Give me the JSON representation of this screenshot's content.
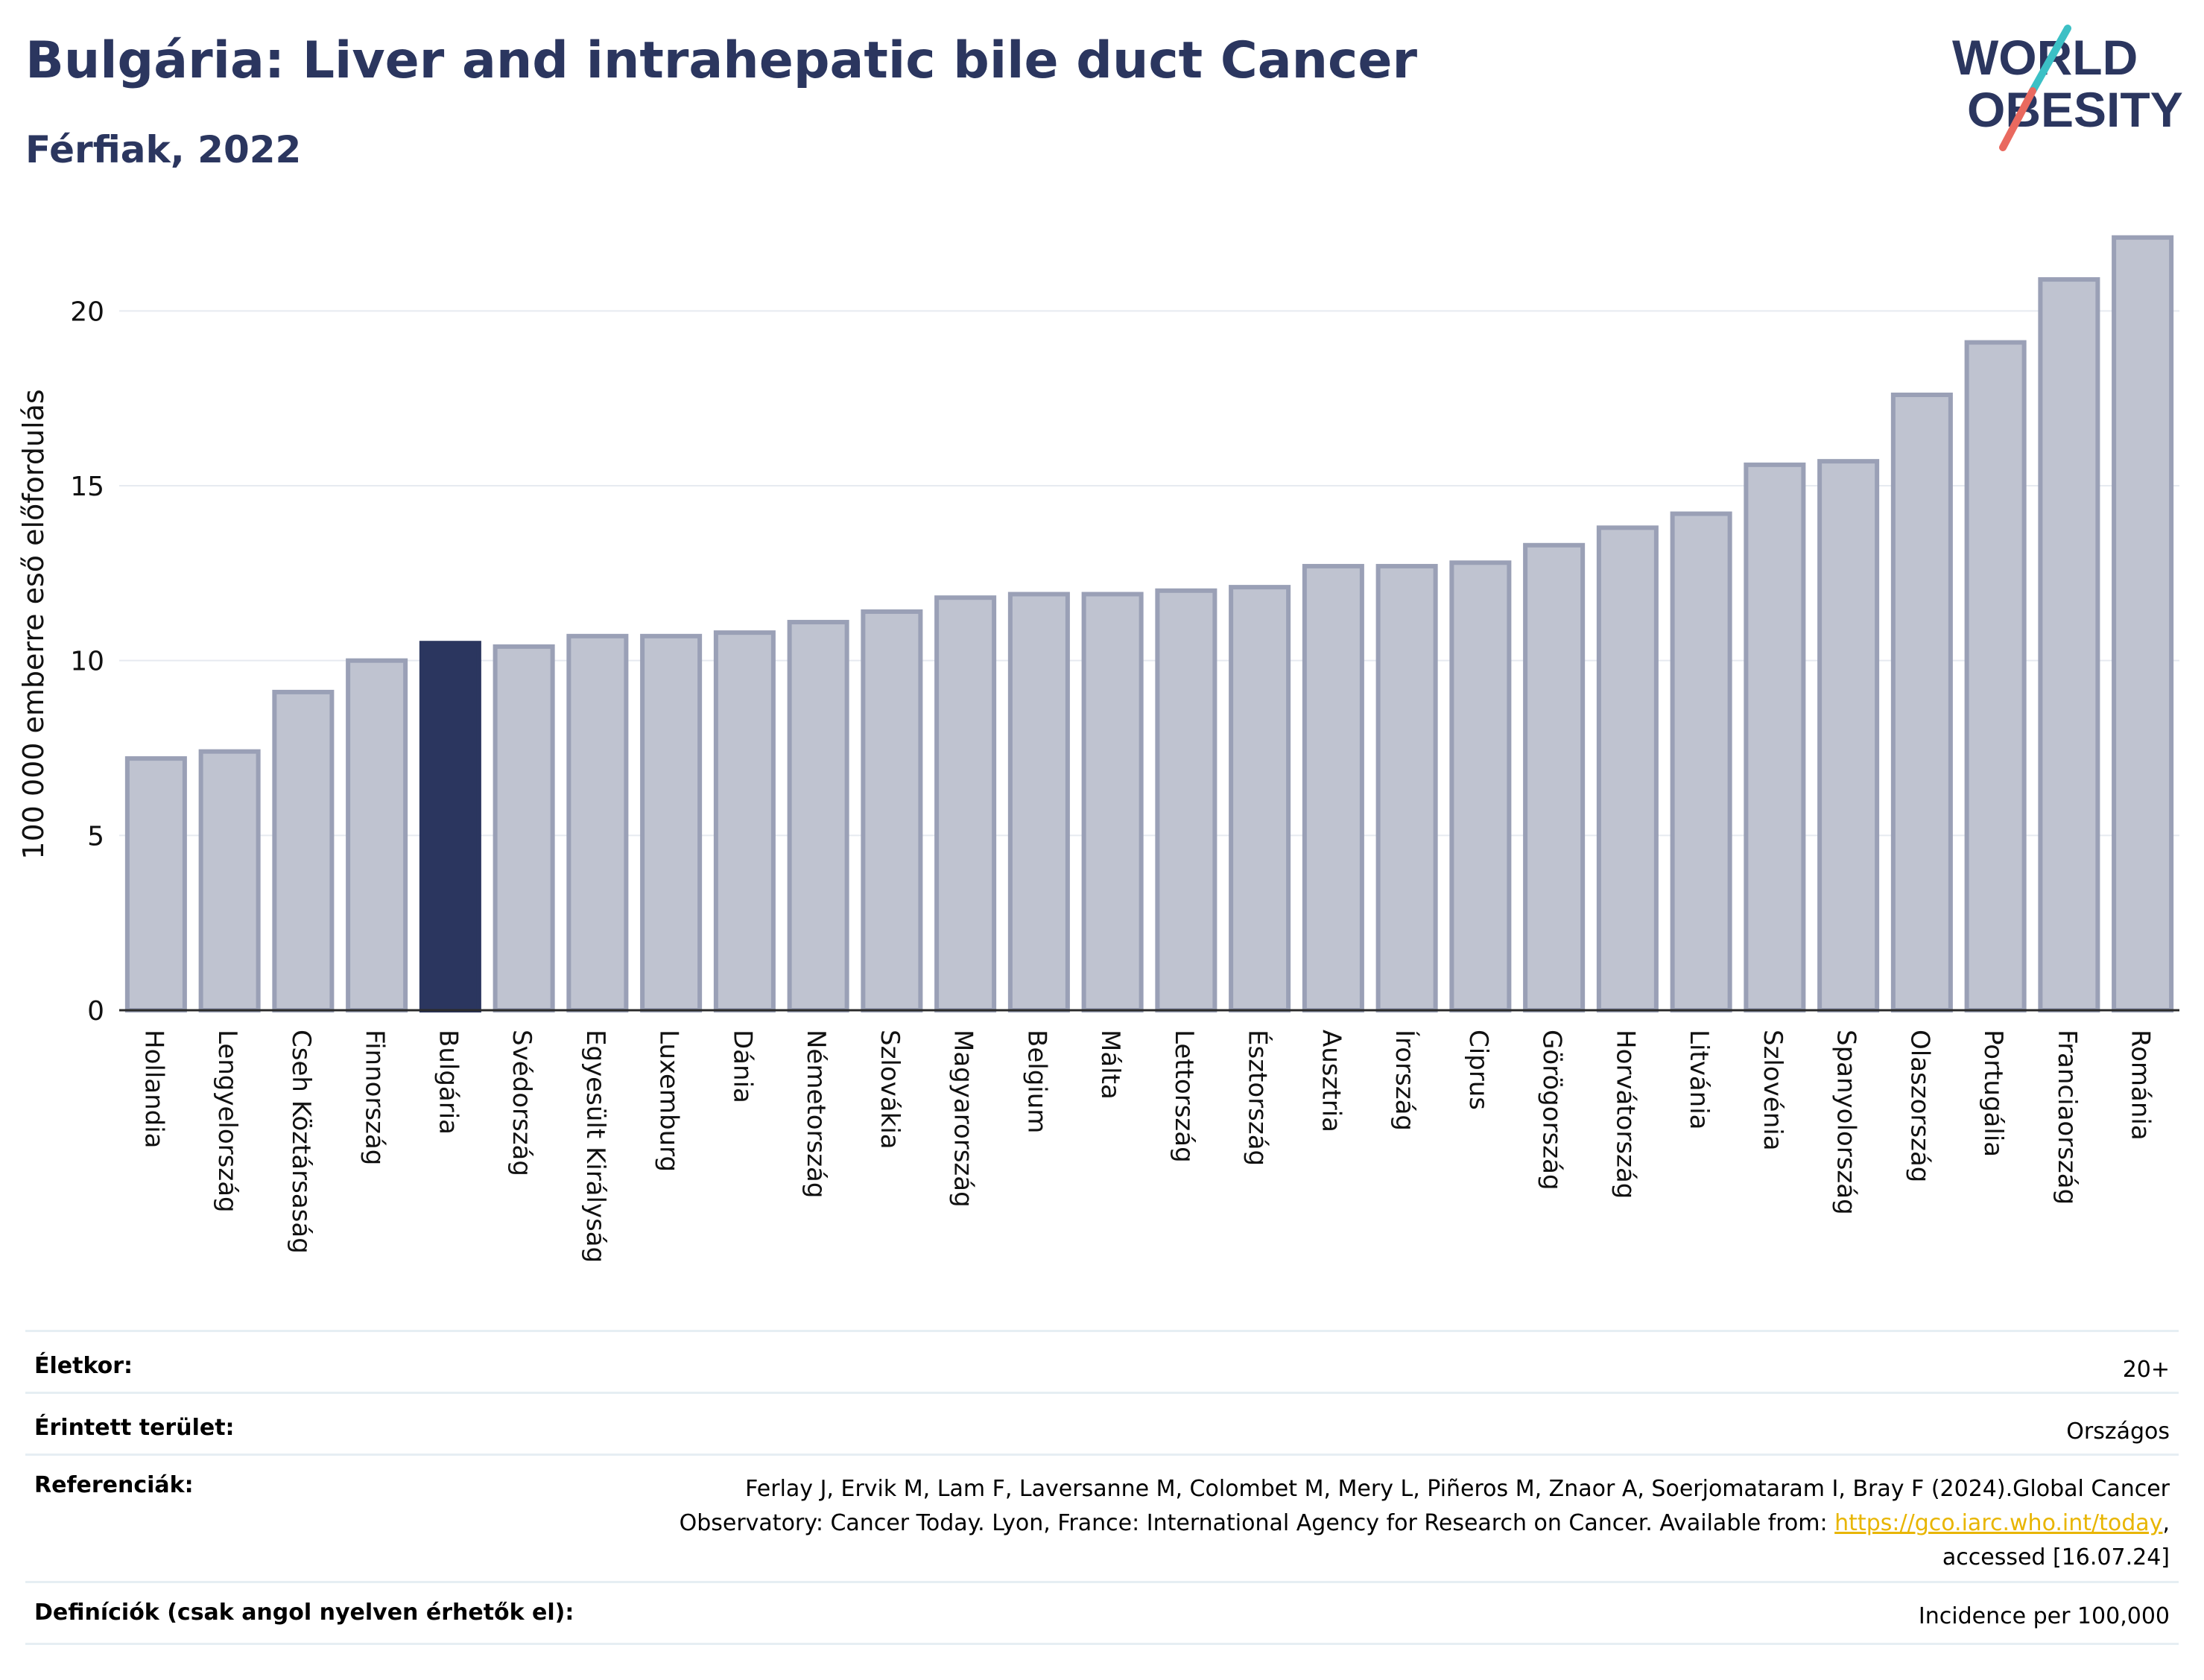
{
  "header": {
    "title": "Bulgária: Liver and intrahepatic bile duct Cancer",
    "subtitle": "Férfiak, 2022"
  },
  "logo": {
    "line1": "WORLD",
    "line2": "OBESITY",
    "icon": "world-obesity-logo"
  },
  "colors": {
    "highlight": "#2b365f",
    "bar": "#bfc3d0",
    "bar_border": "#9aa0b6",
    "grid": "#e6eaf0",
    "slash_teal": "#3cc0c5",
    "slash_red": "#e9695f"
  },
  "chart_data": {
    "type": "bar",
    "title": "Bulgária: Liver and intrahepatic bile duct Cancer",
    "subtitle": "Férfiak, 2022",
    "ylabel": "100 000 emberre eső előfordulás",
    "xlabel": "",
    "ylim": [
      0,
      22.5
    ],
    "yticks": [
      0,
      5,
      10,
      15,
      20
    ],
    "grid": true,
    "highlight": "Bulgária",
    "categories": [
      "Hollandia",
      "Lengyelország",
      "Cseh Köztársaság",
      "Finnország",
      "Bulgária",
      "Svédország",
      "Egyesült Királyság",
      "Luxemburg",
      "Dánia",
      "Németország",
      "Szlovákia",
      "Magyarország",
      "Belgium",
      "Málta",
      "Lettország",
      "Észtország",
      "Ausztria",
      "Írország",
      "Ciprus",
      "Görögország",
      "Horvátország",
      "Litvánia",
      "Szlovénia",
      "Spanyolország",
      "Olaszország",
      "Portugália",
      "Franciaország",
      "Románia"
    ],
    "values": [
      7.2,
      7.4,
      9.1,
      10.0,
      10.5,
      10.4,
      10.7,
      10.7,
      10.8,
      11.1,
      11.4,
      11.8,
      11.9,
      11.9,
      12.0,
      12.1,
      12.7,
      12.7,
      12.8,
      13.3,
      13.8,
      14.2,
      15.6,
      15.7,
      17.6,
      19.1,
      20.9,
      22.1
    ]
  },
  "meta": {
    "age_label": "Életkor:",
    "age_value": "20+",
    "area_label": "Érintett terület:",
    "area_value": "Országos",
    "ref_label": "Referenciák:",
    "ref_line1": "Ferlay J, Ervik M, Lam F, Laversanne M, Colombet M, Mery L, Piñeros M, Znaor A, Soerjomataram I, Bray F (2024).Global Cancer",
    "ref_line2_pre": "Observatory: Cancer Today. Lyon, France: International Agency for Research on Cancer. Available from: ",
    "ref_link": "https://gco.iarc.who.int/today",
    "ref_line2_post": ",",
    "ref_line3": "accessed [16.07.24]",
    "def_label": "Definíciók (csak angol nyelven érhetők el):",
    "def_value": "Incidence per 100,000"
  }
}
